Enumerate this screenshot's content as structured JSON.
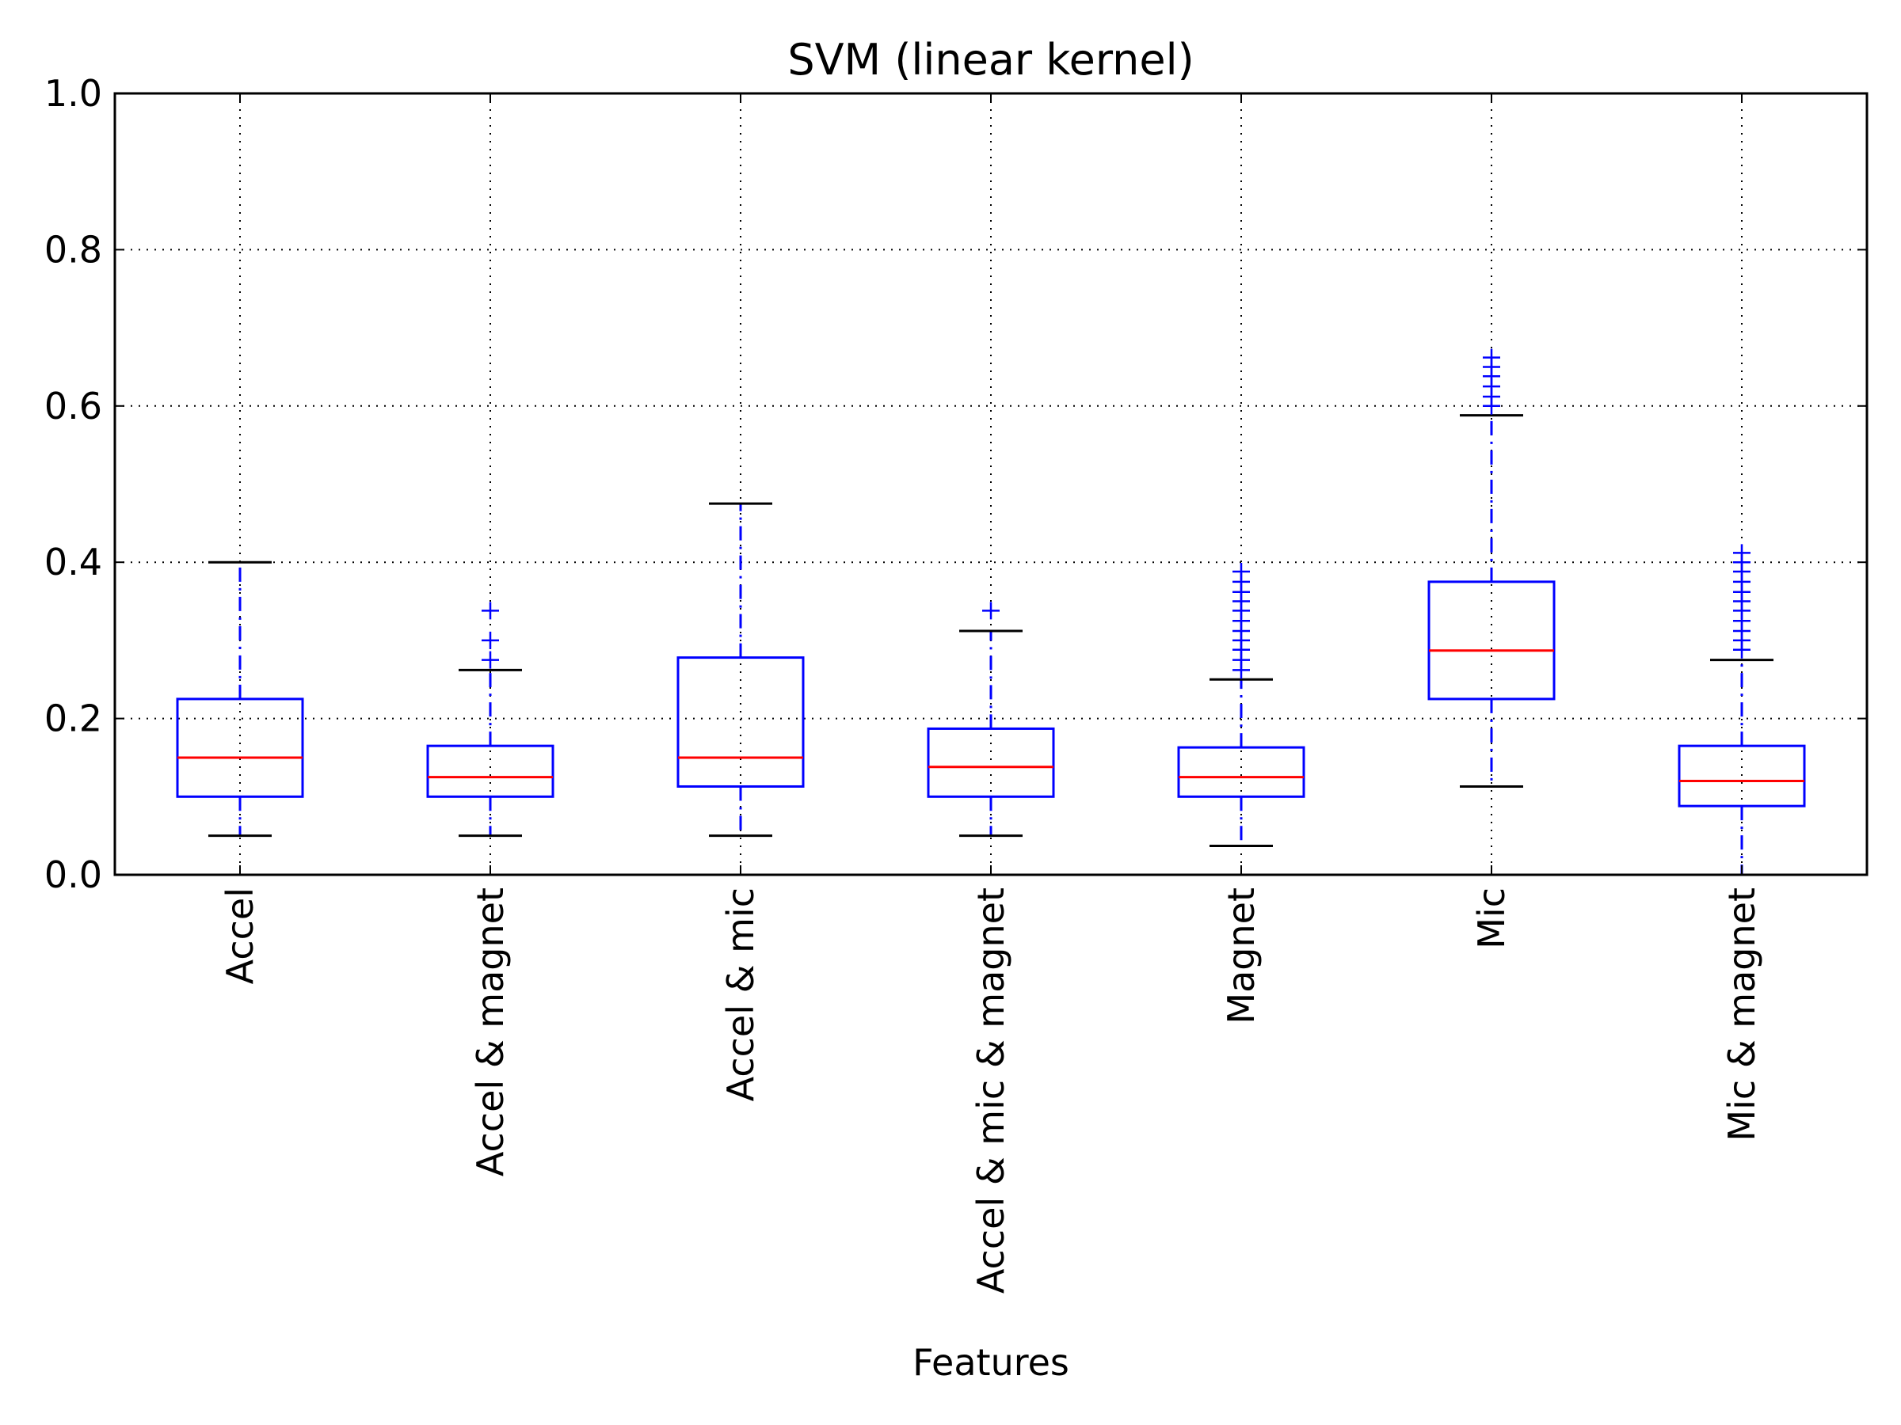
{
  "chart_data": {
    "type": "box",
    "title": "SVM (linear kernel)",
    "xlabel": "Features",
    "ylabel": "",
    "ylim": [
      0,
      1.0
    ],
    "yticks": [
      "0.0",
      "0.2",
      "0.4",
      "0.6",
      "0.8",
      "1.0"
    ],
    "grid": true,
    "colors": {
      "box": "#0000ff",
      "median": "#ff0000",
      "cap": "#000000",
      "flier": "#0000ff"
    },
    "categories": [
      "Accel",
      "Accel & magnet",
      "Accel & mic",
      "Accel & mic & magnet",
      "Magnet",
      "Mic",
      "Mic & magnet"
    ],
    "boxes": [
      {
        "name": "Accel",
        "whisker_low": 0.05,
        "q1": 0.1,
        "median": 0.15,
        "q3": 0.225,
        "whisker_high": 0.4,
        "outliers": []
      },
      {
        "name": "Accel & magnet",
        "whisker_low": 0.05,
        "q1": 0.1,
        "median": 0.125,
        "q3": 0.165,
        "whisker_high": 0.262,
        "outliers": [
          0.275,
          0.3,
          0.338
        ]
      },
      {
        "name": "Accel & mic",
        "whisker_low": 0.05,
        "q1": 0.113,
        "median": 0.15,
        "q3": 0.278,
        "whisker_high": 0.475,
        "outliers": []
      },
      {
        "name": "Accel & mic & magnet",
        "whisker_low": 0.05,
        "q1": 0.1,
        "median": 0.138,
        "q3": 0.187,
        "whisker_high": 0.312,
        "outliers": [
          0.338
        ]
      },
      {
        "name": "Magnet",
        "whisker_low": 0.037,
        "q1": 0.1,
        "median": 0.125,
        "q3": 0.163,
        "whisker_high": 0.25,
        "outliers": [
          0.262,
          0.275,
          0.288,
          0.3,
          0.312,
          0.325,
          0.338,
          0.35,
          0.362,
          0.375,
          0.388
        ]
      },
      {
        "name": "Mic",
        "whisker_low": 0.113,
        "q1": 0.225,
        "median": 0.287,
        "q3": 0.375,
        "whisker_high": 0.588,
        "outliers": [
          0.6,
          0.612,
          0.625,
          0.638,
          0.65,
          0.662
        ]
      },
      {
        "name": "Mic & magnet",
        "whisker_low": 0.0,
        "q1": 0.088,
        "median": 0.12,
        "q3": 0.165,
        "whisker_high": 0.275,
        "outliers": [
          0.288,
          0.3,
          0.312,
          0.325,
          0.338,
          0.35,
          0.362,
          0.375,
          0.388,
          0.4,
          0.412
        ]
      }
    ]
  }
}
